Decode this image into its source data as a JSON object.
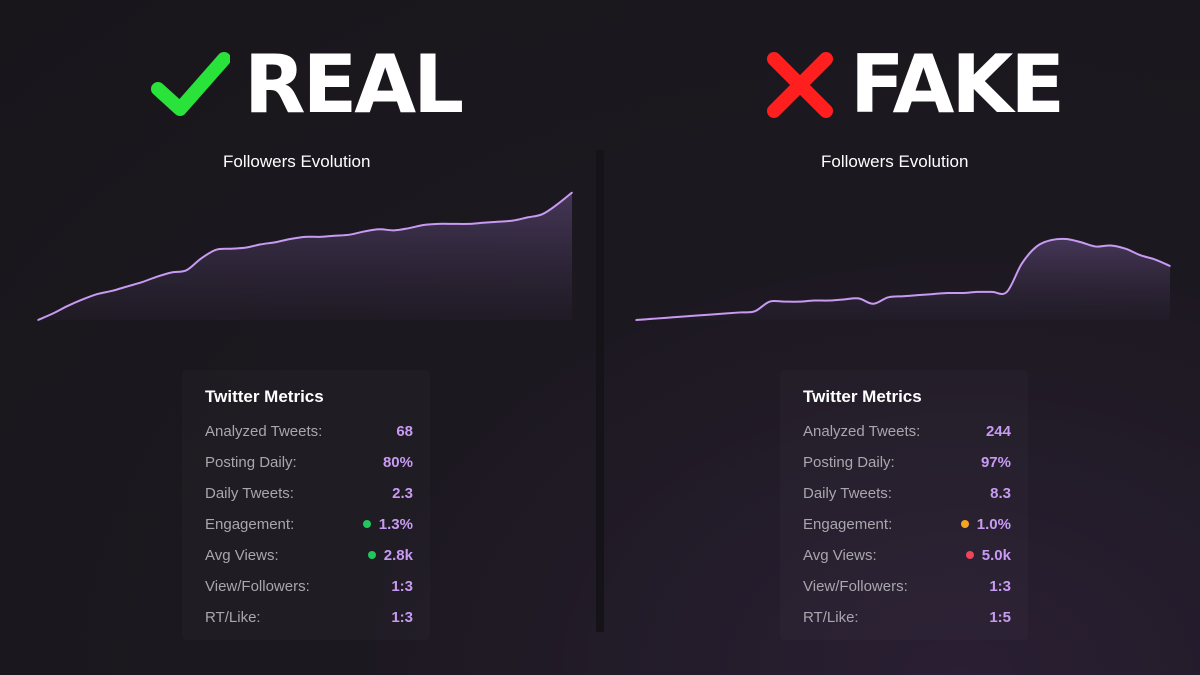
{
  "headings": {
    "real": {
      "label": "REAL",
      "icon": "check-icon",
      "icon_color": "#29e23a"
    },
    "fake": {
      "label": "FAKE",
      "icon": "cross-icon",
      "icon_color": "#ff1f1f"
    }
  },
  "colors": {
    "line": "#c99af2",
    "value": "#c79bf2",
    "green": "#22c55e",
    "orange": "#f5a524",
    "red": "#ef4459"
  },
  "panels": {
    "real": {
      "metrics_title": "Twitter Metrics",
      "metrics": [
        {
          "label": "Analyzed Tweets:",
          "value": "68",
          "dot": null
        },
        {
          "label": "Posting Daily:",
          "value": "80%",
          "dot": null
        },
        {
          "label": "Daily Tweets:",
          "value": "2.3",
          "dot": null
        },
        {
          "label": "Engagement:",
          "value": "1.3%",
          "dot": "green"
        },
        {
          "label": "Avg Views:",
          "value": "2.8k",
          "dot": "green"
        },
        {
          "label": "View/Followers:",
          "value": "1:3",
          "dot": null
        },
        {
          "label": "RT/Like:",
          "value": "1:3",
          "dot": null
        }
      ]
    },
    "fake": {
      "metrics_title": "Twitter Metrics",
      "metrics": [
        {
          "label": "Analyzed Tweets:",
          "value": "244",
          "dot": null
        },
        {
          "label": "Posting Daily:",
          "value": "97%",
          "dot": null
        },
        {
          "label": "Daily Tweets:",
          "value": "8.3",
          "dot": null
        },
        {
          "label": "Engagement:",
          "value": "1.0%",
          "dot": "orange"
        },
        {
          "label": "Avg Views:",
          "value": "5.0k",
          "dot": "red"
        },
        {
          "label": "View/Followers:",
          "value": "1:3",
          "dot": null
        },
        {
          "label": "RT/Like:",
          "value": "1:5",
          "dot": null
        }
      ]
    }
  },
  "chart_data": [
    {
      "type": "area",
      "title": "Followers Evolution",
      "x": [
        0,
        1,
        2,
        3,
        4,
        5,
        6,
        7,
        8,
        9,
        10,
        11,
        12,
        13,
        14,
        15,
        16,
        17,
        18,
        19,
        20,
        21,
        22,
        23,
        24,
        25,
        26,
        27,
        28,
        29,
        30,
        31,
        32,
        33,
        34,
        35,
        36
      ],
      "y": [
        0,
        6,
        13,
        19,
        24,
        27,
        31,
        35,
        40,
        44,
        46,
        57,
        65,
        66,
        67,
        70,
        72,
        75,
        77,
        77,
        78,
        79,
        82,
        84,
        83,
        85,
        88,
        89,
        89,
        89,
        90,
        91,
        92,
        95,
        98,
        107,
        118
      ],
      "ylim": [
        0,
        125
      ],
      "grid": false,
      "xlabel": "",
      "ylabel": ""
    },
    {
      "type": "area",
      "title": "Followers Evolution",
      "x": [
        0,
        1,
        2,
        3,
        4,
        5,
        6,
        7,
        8,
        9,
        10,
        11,
        12,
        13,
        14,
        15,
        16,
        17,
        18,
        19,
        20,
        21,
        22,
        23,
        24,
        25,
        26,
        27,
        28,
        29,
        30,
        31,
        32,
        33,
        34,
        35,
        36
      ],
      "y": [
        0,
        1,
        2,
        3,
        4,
        5,
        6,
        7,
        8,
        17,
        17,
        17,
        18,
        18,
        19,
        20,
        15,
        21,
        22,
        23,
        24,
        25,
        25,
        26,
        26,
        26,
        52,
        68,
        74,
        75,
        72,
        68,
        69,
        66,
        60,
        56,
        50
      ],
      "ylim": [
        0,
        125
      ],
      "grid": false,
      "xlabel": "",
      "ylabel": ""
    }
  ]
}
